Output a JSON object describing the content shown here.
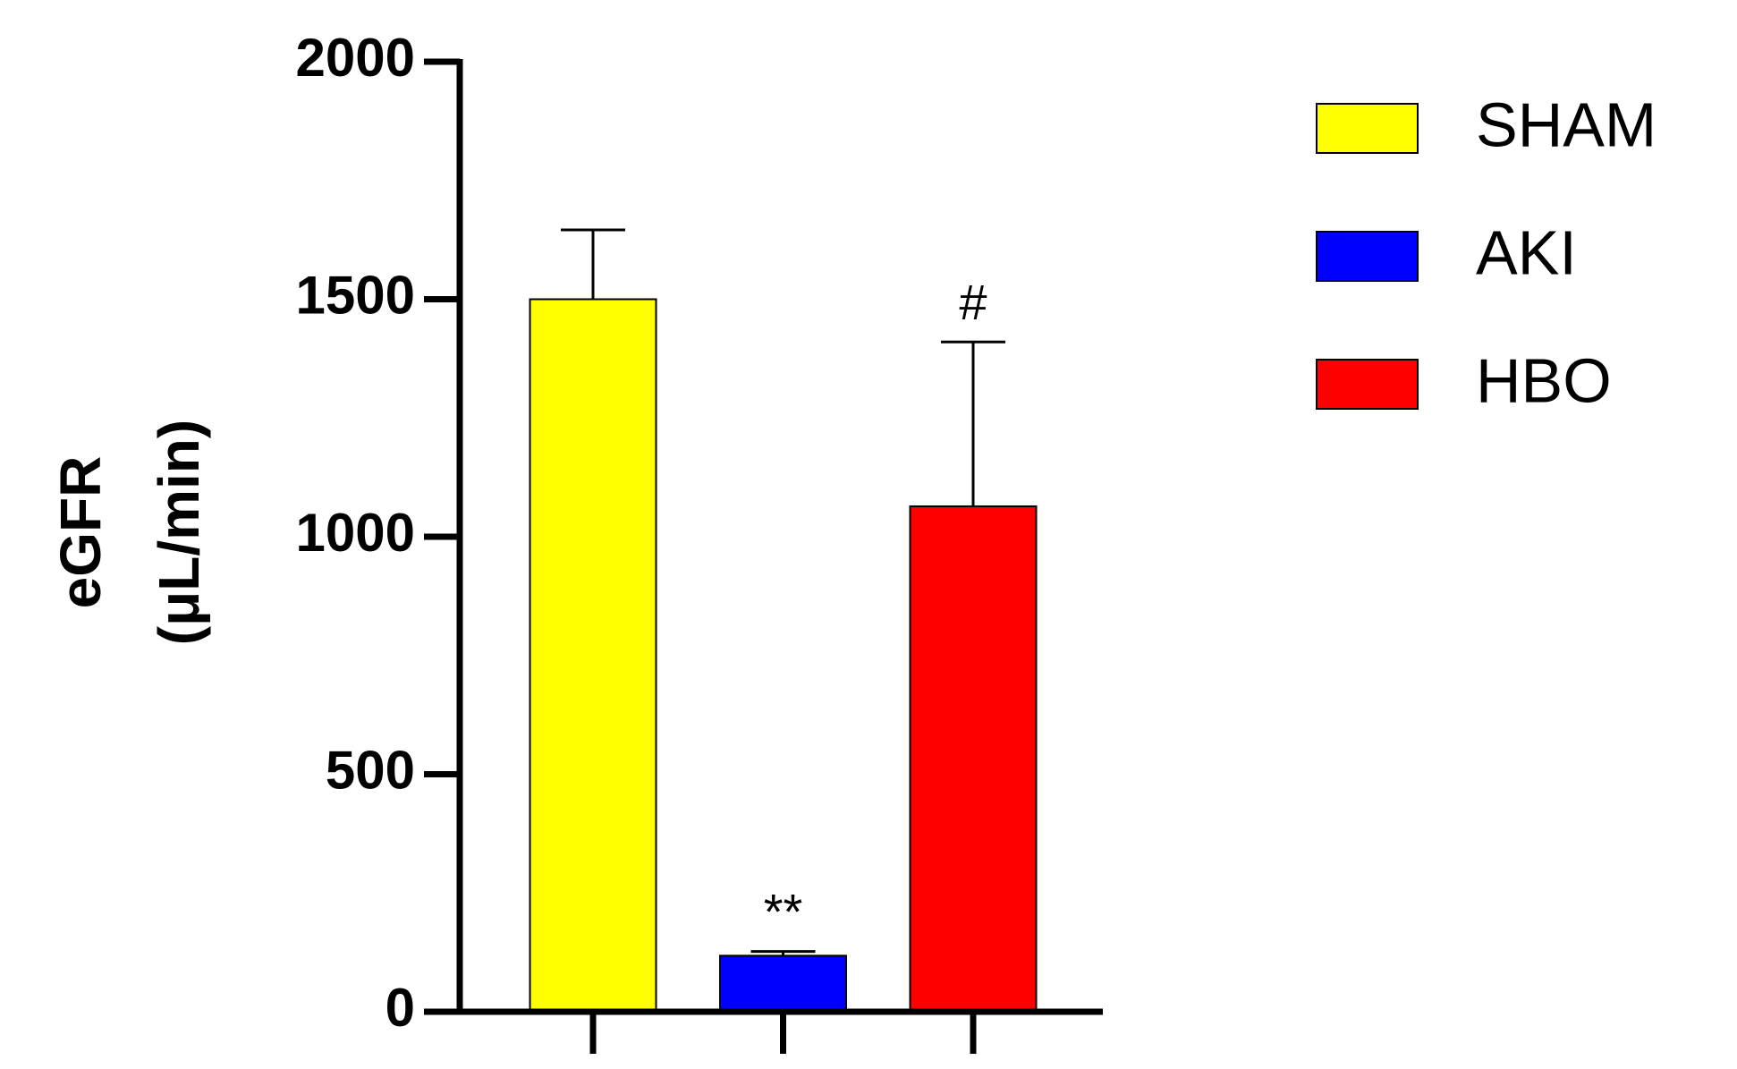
{
  "chart_data": {
    "type": "bar",
    "ylabel": [
      "eGFR",
      "(μL/min)"
    ],
    "ylim": [
      0,
      2000
    ],
    "yticks": [
      0,
      500,
      1000,
      1500,
      2000
    ],
    "series": [
      {
        "name": "SHAM",
        "color": "#ffff00",
        "values": [
          1500
        ],
        "errors": [
          146
        ]
      },
      {
        "name": "AKI",
        "color": "#0000ff",
        "values": [
          118
        ],
        "errors": [
          9
        ],
        "annotation": "**"
      },
      {
        "name": "HBO",
        "color": "#ff0000",
        "values": [
          1064
        ],
        "errors": [
          346
        ],
        "annotation": "#"
      }
    ]
  }
}
